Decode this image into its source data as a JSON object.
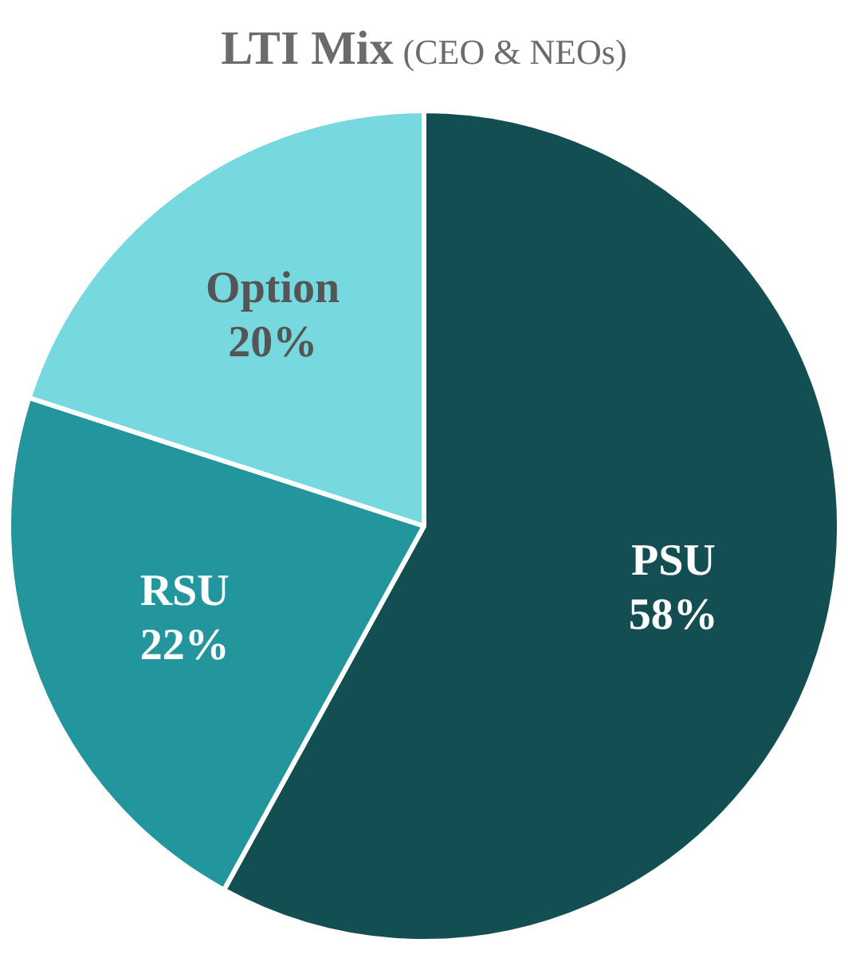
{
  "chart_data": {
    "type": "pie",
    "title": "LTI Mix",
    "subtitle": "(CEO & NEOs)",
    "categories": [
      "PSU",
      "RSU",
      "Option"
    ],
    "values": [
      58,
      22,
      20
    ],
    "value_labels": [
      "58%",
      "22%",
      "20%"
    ],
    "colors": [
      "#134f52",
      "#22969c",
      "#76d9e0"
    ],
    "legend": false
  }
}
